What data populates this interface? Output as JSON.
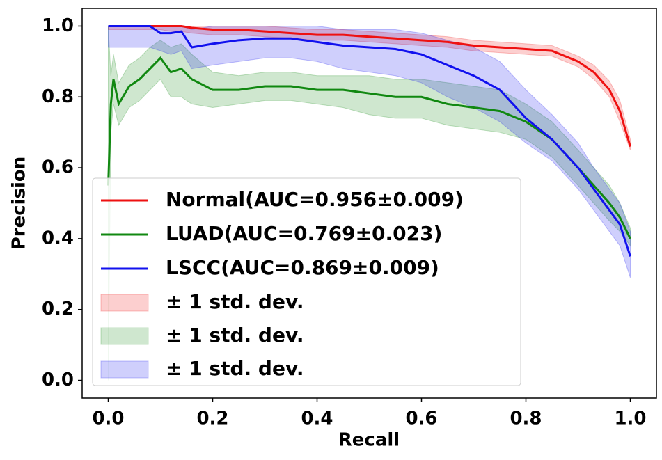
{
  "chart_data": {
    "type": "line",
    "xlabel": "Recall",
    "ylabel": "Precision",
    "xlim": [
      -0.05,
      1.05
    ],
    "ylim": [
      -0.05,
      1.05
    ],
    "xticks": [
      {
        "value": 0,
        "label": "0.0"
      },
      0.2,
      0.4,
      0.6,
      0.8,
      {
        "value": 1,
        "label": "1.0"
      }
    ],
    "yticks": [
      {
        "value": 0,
        "label": "0.0"
      },
      0.2,
      0.4,
      0.6,
      0.8,
      {
        "value": 1,
        "label": "1.0"
      }
    ],
    "legend": "lower left",
    "x": [
      0,
      0.005,
      0.01,
      0.02,
      0.04,
      0.06,
      0.08,
      0.1,
      0.12,
      0.14,
      0.16,
      0.2,
      0.25,
      0.3,
      0.35,
      0.4,
      0.45,
      0.5,
      0.55,
      0.6,
      0.65,
      0.7,
      0.75,
      0.8,
      0.85,
      0.9,
      0.93,
      0.96,
      0.98,
      1.0
    ],
    "series": [
      {
        "name": "Normal(AUC=0.956±0.009)",
        "color": "#ee1111",
        "values": [
          1,
          1,
          1,
          1,
          1,
          1,
          1,
          1,
          1,
          1,
          0.995,
          0.99,
          0.99,
          0.985,
          0.98,
          0.975,
          0.975,
          0.97,
          0.965,
          0.96,
          0.955,
          0.945,
          0.94,
          0.935,
          0.93,
          0.9,
          0.87,
          0.82,
          0.76,
          0.66
        ]
      },
      {
        "name": "LUAD(AUC=0.769±0.023)",
        "color": "#118811",
        "values": [
          0.55,
          0.78,
          0.85,
          0.78,
          0.83,
          0.85,
          0.88,
          0.91,
          0.87,
          0.88,
          0.85,
          0.82,
          0.82,
          0.83,
          0.83,
          0.82,
          0.82,
          0.81,
          0.8,
          0.8,
          0.78,
          0.77,
          0.76,
          0.73,
          0.68,
          0.6,
          0.55,
          0.5,
          0.46,
          0.4
        ]
      },
      {
        "name": "LSCC(AUC=0.869±0.009)",
        "color": "#1111ee",
        "values": [
          1,
          1,
          1,
          1,
          1,
          1,
          1,
          0.98,
          0.98,
          0.985,
          0.94,
          0.95,
          0.96,
          0.965,
          0.965,
          0.955,
          0.945,
          0.94,
          0.935,
          0.92,
          0.89,
          0.86,
          0.82,
          0.74,
          0.68,
          0.6,
          0.54,
          0.48,
          0.44,
          0.35
        ]
      }
    ],
    "bands": [
      {
        "name": "± 1 std. dev.",
        "color": "#ee1111",
        "lower": [
          0.99,
          0.99,
          0.99,
          0.99,
          0.99,
          0.99,
          0.99,
          0.99,
          0.985,
          0.985,
          0.98,
          0.975,
          0.975,
          0.97,
          0.965,
          0.96,
          0.96,
          0.955,
          0.95,
          0.945,
          0.94,
          0.93,
          0.925,
          0.92,
          0.915,
          0.885,
          0.85,
          0.8,
          0.73,
          0.65
        ],
        "upper": [
          1,
          1,
          1,
          1,
          1,
          1,
          1,
          1,
          1,
          1,
          1,
          1,
          1,
          1,
          0.995,
          0.99,
          0.99,
          0.985,
          0.98,
          0.975,
          0.97,
          0.96,
          0.955,
          0.95,
          0.945,
          0.915,
          0.89,
          0.845,
          0.79,
          0.68
        ]
      },
      {
        "name": "± 1 std. dev.",
        "color": "#118811",
        "lower": [
          0,
          0.7,
          0.78,
          0.72,
          0.77,
          0.79,
          0.82,
          0.85,
          0.8,
          0.8,
          0.78,
          0.77,
          0.78,
          0.79,
          0.79,
          0.78,
          0.77,
          0.75,
          0.74,
          0.74,
          0.72,
          0.71,
          0.7,
          0.68,
          0.63,
          0.55,
          0.5,
          0.45,
          0.42,
          0.38
        ],
        "upper": [
          1,
          0.86,
          0.92,
          0.84,
          0.89,
          0.91,
          0.94,
          0.96,
          0.94,
          0.95,
          0.92,
          0.87,
          0.86,
          0.87,
          0.87,
          0.86,
          0.86,
          0.86,
          0.85,
          0.85,
          0.84,
          0.83,
          0.82,
          0.78,
          0.73,
          0.65,
          0.6,
          0.55,
          0.5,
          0.43
        ]
      },
      {
        "name": "± 1 std. dev.",
        "color": "#1111ee",
        "lower": [
          0.94,
          0.94,
          0.94,
          0.94,
          0.94,
          0.94,
          0.94,
          0.93,
          0.92,
          0.93,
          0.88,
          0.89,
          0.9,
          0.91,
          0.91,
          0.9,
          0.88,
          0.87,
          0.86,
          0.84,
          0.8,
          0.77,
          0.73,
          0.67,
          0.62,
          0.54,
          0.48,
          0.42,
          0.38,
          0.29
        ],
        "upper": [
          1,
          1,
          1,
          1,
          1,
          1,
          1,
          1,
          1,
          1,
          0.99,
          1,
          1,
          1,
          1,
          1,
          0.99,
          0.99,
          0.99,
          0.98,
          0.96,
          0.94,
          0.9,
          0.82,
          0.75,
          0.67,
          0.6,
          0.54,
          0.5,
          0.42
        ]
      }
    ]
  }
}
